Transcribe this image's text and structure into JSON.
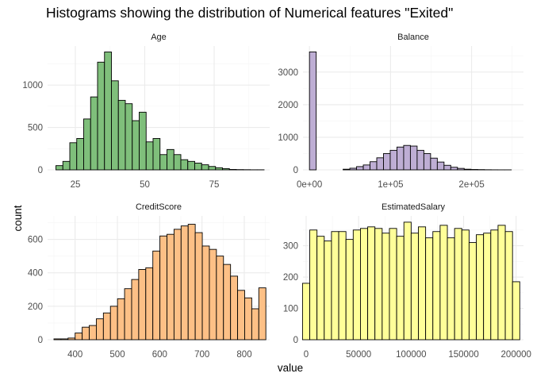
{
  "title": "Histograms showing the distribution of Numerical features \"Exited\"",
  "ylabel": "count",
  "xlabel": "value",
  "colors": {
    "Age": "#7fbf7b",
    "Balance": "#beaed4",
    "CreditScore": "#fdc086",
    "EstimatedSalary": "#ffff99",
    "outline": "#000000",
    "grid_major": "#ebebeb",
    "grid_minor": "#f5f5f5",
    "text": "#4d4d4d"
  },
  "chart_data": [
    {
      "type": "bar",
      "title": "Age",
      "xlim": [
        15,
        95
      ],
      "ylim": [
        0,
        1460
      ],
      "xticks": [
        25,
        50,
        75
      ],
      "xtick_labels": [
        "25",
        "50",
        "75"
      ],
      "yticks": [
        0,
        500,
        1000
      ],
      "ytick_labels": [
        "0",
        "500",
        "1000"
      ],
      "bin_width": 2.5,
      "bin_starts": [
        18,
        20.5,
        23,
        25.5,
        28,
        30.5,
        33,
        35.5,
        38,
        40.5,
        43,
        45.5,
        48,
        50.5,
        53,
        55.5,
        58,
        60.5,
        63,
        65.5,
        68,
        70.5,
        73,
        75.5,
        78,
        80.5,
        83,
        85.5,
        88,
        90.5
      ],
      "values": [
        50,
        100,
        320,
        370,
        600,
        860,
        1270,
        1390,
        1050,
        820,
        780,
        580,
        680,
        330,
        370,
        180,
        240,
        180,
        120,
        100,
        80,
        60,
        40,
        25,
        15,
        5,
        3,
        2,
        1,
        1
      ]
    },
    {
      "type": "bar",
      "title": "Balance",
      "xlim": [
        -8000,
        264000
      ],
      "ylim": [
        0,
        3800
      ],
      "xticks": [
        0,
        100000,
        200000
      ],
      "xtick_labels": [
        "0e+00",
        "1e+05",
        "2e+05"
      ],
      "yticks": [
        0,
        1000,
        2000,
        3000
      ],
      "ytick_labels": [
        "0",
        "1000",
        "2000",
        "3000"
      ],
      "bin_width": 8300,
      "bin_starts": [
        0,
        8300,
        16600,
        24900,
        33200,
        41500,
        49800,
        58100,
        66400,
        74700,
        83000,
        91300,
        99600,
        107900,
        116200,
        124500,
        132800,
        141100,
        149400,
        157700,
        166000,
        174300,
        182600,
        190900,
        199200,
        207500,
        215800,
        224100,
        232400,
        240700
      ],
      "values": [
        3620,
        0,
        0,
        0,
        0,
        20,
        50,
        100,
        150,
        250,
        370,
        500,
        600,
        700,
        750,
        730,
        600,
        500,
        360,
        240,
        140,
        80,
        45,
        20,
        12,
        8,
        4,
        2,
        1,
        1
      ]
    },
    {
      "type": "bar",
      "title": "CreditScore",
      "xlim": [
        335,
        860
      ],
      "ylim": [
        0,
        740
      ],
      "xticks": [
        400,
        500,
        600,
        700,
        800
      ],
      "xtick_labels": [
        "400",
        "500",
        "600",
        "700",
        "800"
      ],
      "yticks": [
        0,
        200,
        400,
        600
      ],
      "ytick_labels": [
        "0",
        "200",
        "400",
        "600"
      ],
      "bin_width": 16.7,
      "bin_starts": [
        350,
        366.7,
        383.4,
        400.1,
        416.8,
        433.5,
        450.2,
        466.9,
        483.6,
        500.3,
        517,
        533.7,
        550.4,
        567.1,
        583.8,
        600.5,
        617.2,
        633.9,
        650.6,
        667.3,
        684,
        700.7,
        717.4,
        734.1,
        750.8,
        767.5,
        784.2,
        800.9,
        817.6,
        834.3
      ],
      "values": [
        5,
        5,
        10,
        40,
        75,
        85,
        125,
        160,
        200,
        245,
        305,
        360,
        420,
        430,
        530,
        620,
        630,
        660,
        680,
        690,
        640,
        560,
        540,
        500,
        450,
        380,
        295,
        250,
        185,
        310
      ]
    },
    {
      "type": "bar",
      "title": "EstimatedSalary",
      "xlim": [
        -3000,
        207000
      ],
      "ylim": [
        0,
        395
      ],
      "xticks": [
        0,
        50000,
        100000,
        150000,
        200000
      ],
      "xtick_labels": [
        "0",
        "50000",
        "100000",
        "150000",
        "200000"
      ],
      "yticks": [
        0,
        100,
        200,
        300
      ],
      "ytick_labels": [
        "0",
        "100",
        "200",
        "300"
      ],
      "bin_width": 6897,
      "bin_starts": [
        -3448,
        3449,
        10346,
        17243,
        24140,
        31037,
        37934,
        44831,
        51728,
        58625,
        65522,
        72419,
        79316,
        86213,
        93110,
        100007,
        106904,
        113801,
        120698,
        127595,
        134492,
        141389,
        148286,
        155183,
        162080,
        168977,
        175874,
        182771,
        189668,
        196565
      ],
      "values": [
        180,
        350,
        330,
        315,
        345,
        345,
        320,
        350,
        355,
        360,
        355,
        340,
        355,
        330,
        375,
        340,
        360,
        325,
        345,
        365,
        325,
        355,
        350,
        310,
        335,
        340,
        350,
        365,
        345,
        185
      ]
    }
  ]
}
